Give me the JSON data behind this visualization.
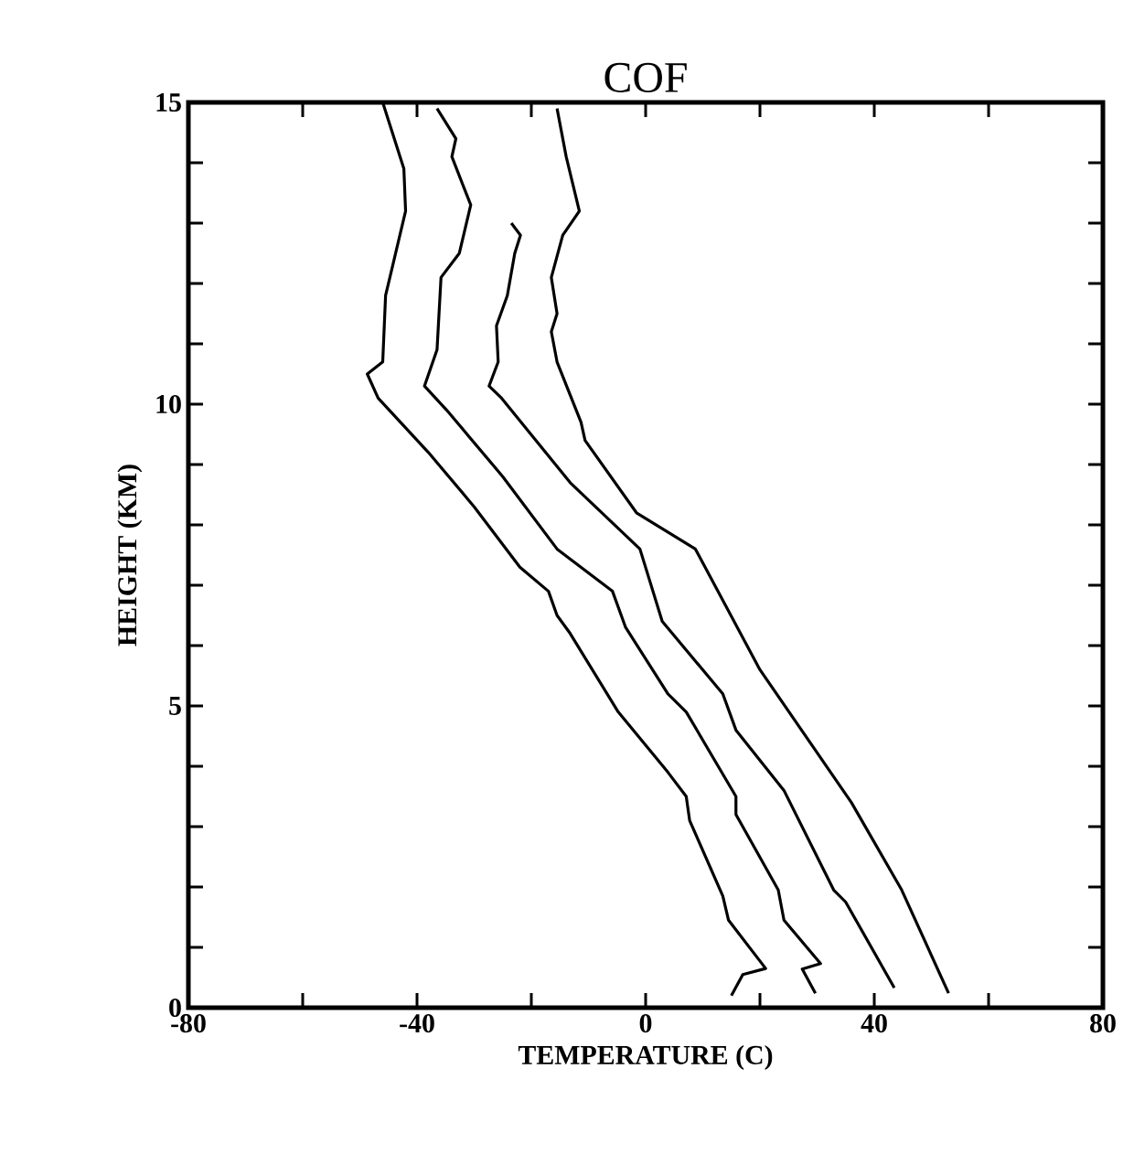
{
  "chart_data": {
    "type": "line",
    "title": "COF",
    "xlabel": "TEMPERATURE (C)",
    "ylabel": "HEIGHT (KM)",
    "xlim": [
      -80,
      80
    ],
    "ylim": [
      0,
      15
    ],
    "xticks": [
      -80,
      {
        "value": -60,
        "label": null
      },
      -40,
      {
        "value": -20,
        "label": null
      },
      0,
      {
        "value": 20,
        "label": null
      },
      40,
      {
        "value": 60,
        "label": null
      },
      80
    ],
    "yticks": [
      0,
      {
        "value": 1,
        "label": null
      },
      {
        "value": 2,
        "label": null
      },
      {
        "value": 3,
        "label": null
      },
      {
        "value": 4,
        "label": null
      },
      5,
      {
        "value": 6,
        "label": null
      },
      {
        "value": 7,
        "label": null
      },
      {
        "value": 8,
        "label": null
      },
      {
        "value": 9,
        "label": null
      },
      10,
      {
        "value": 11,
        "label": null
      },
      {
        "value": 12,
        "label": null
      },
      {
        "value": 13,
        "label": null
      },
      {
        "value": 14,
        "label": null
      },
      15
    ],
    "grid": false,
    "marker": "none",
    "line_style": "solid",
    "series": [
      {
        "color": "#000000",
        "x": [
          15,
          17,
          21,
          14.5,
          13.5,
          7.7,
          7.1,
          3.9,
          -4.8,
          -13.2,
          -15.5,
          -17,
          -22,
          -30,
          -38,
          -46.8,
          -48.7,
          -46,
          -45.5,
          -44.5,
          -42,
          -42.3,
          -46
        ],
        "values": [
          0.2,
          0.55,
          0.65,
          1.45,
          1.85,
          3.1,
          3.5,
          3.9,
          4.9,
          6.2,
          6.5,
          6.9,
          7.3,
          8.3,
          9.2,
          10.1,
          10.5,
          10.7,
          11.8,
          12.2,
          13.2,
          13.9,
          15
        ]
      },
      {
        "color": "#000000",
        "x": [
          29.7,
          27.4,
          30.6,
          24.2,
          23.2,
          15.8,
          15.8,
          7.1,
          3.9,
          -3.5,
          -5.8,
          -15.5,
          -25,
          -34.8,
          -38.7,
          -36.5,
          -35.8,
          -32.6,
          -30.6,
          -33.9,
          -33.2,
          -36.5
        ],
        "values": [
          0.24,
          0.64,
          0.73,
          1.45,
          1.95,
          3.2,
          3.5,
          4.9,
          5.2,
          6.3,
          6.9,
          7.6,
          8.8,
          9.9,
          10.3,
          10.9,
          12.1,
          12.5,
          13.3,
          14.1,
          14.4,
          14.9
        ]
      },
      {
        "color": "#000000",
        "x": [
          43.5,
          35,
          32.9,
          24.2,
          15.8,
          13.5,
          2.9,
          -1,
          -13.2,
          -25.2,
          -27.4,
          -25.8,
          -26.1,
          -24.2,
          -22.9,
          -21.9,
          -23.5
        ],
        "values": [
          0.33,
          1.75,
          1.95,
          3.6,
          4.6,
          5.2,
          6.4,
          7.6,
          8.7,
          10.1,
          10.3,
          10.7,
          11.3,
          11.8,
          12.5,
          12.8,
          13.0
        ]
      },
      {
        "color": "#000000",
        "x": [
          53,
          44.8,
          36,
          20,
          8.7,
          -1.6,
          -10.6,
          -11.3,
          -15.5,
          -16.5,
          -15.5,
          -16.5,
          -14.5,
          -11.6,
          -13.9,
          -15.5
        ],
        "values": [
          0.24,
          1.95,
          3.4,
          5.6,
          7.6,
          8.2,
          9.4,
          9.7,
          10.7,
          11.2,
          11.5,
          12.1,
          12.8,
          13.2,
          14.1,
          14.9
        ]
      }
    ]
  }
}
